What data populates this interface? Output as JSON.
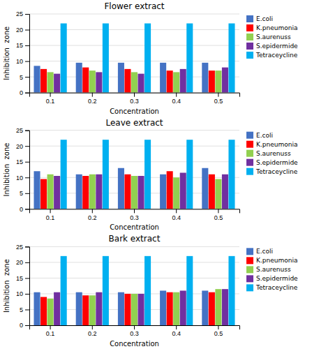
{
  "chart_data": [
    {
      "type": "bar",
      "title": "Flower extract",
      "xlabel": "Concentration",
      "ylabel": "Inhibition  zone",
      "categories": [
        "0.1",
        "0.2",
        "0.3",
        "0.4",
        "0.5"
      ],
      "series": [
        {
          "name": "E.coli",
          "color": "#4472C4",
          "values": [
            8.5,
            9.5,
            9.5,
            9.5,
            9.5
          ]
        },
        {
          "name": "K.pneumonia",
          "color": "#FF0000",
          "values": [
            7.5,
            8.0,
            7.5,
            7.0,
            7.0
          ]
        },
        {
          "name": "S.aurenuss",
          "color": "#92D050",
          "values": [
            6.5,
            7.0,
            6.5,
            6.5,
            7.0
          ]
        },
        {
          "name": "S.epidermide",
          "color": "#7030A0",
          "values": [
            6.0,
            6.5,
            6.0,
            7.5,
            8.0
          ]
        },
        {
          "name": "Tetraceycline",
          "color": "#00B0F0",
          "values": [
            22,
            22,
            22,
            22,
            22
          ]
        }
      ],
      "ylim": [
        0,
        25
      ],
      "yticks": [
        0,
        5,
        10,
        15,
        20,
        25
      ],
      "grid": true,
      "legend": "upper right"
    },
    {
      "type": "bar",
      "title": "Leave extract",
      "xlabel": "Concentration",
      "ylabel": "Inhibition  zone",
      "categories": [
        "0.1",
        "0.2",
        "0.3",
        "0.4",
        "0.5"
      ],
      "series": [
        {
          "name": "E.coli",
          "color": "#4472C4",
          "values": [
            12.0,
            11.0,
            13.0,
            11.0,
            13.0
          ]
        },
        {
          "name": "K.pneumonia",
          "color": "#FF0000",
          "values": [
            9.5,
            10.5,
            11.0,
            12.0,
            11.0
          ]
        },
        {
          "name": "S.aurenuss",
          "color": "#92D050",
          "values": [
            11.0,
            11.0,
            10.5,
            10.0,
            9.5
          ]
        },
        {
          "name": "S.epidermide",
          "color": "#7030A0",
          "values": [
            10.5,
            11.0,
            10.5,
            11.5,
            11.0
          ]
        },
        {
          "name": "Tetraceycline",
          "color": "#00B0F0",
          "values": [
            22,
            22,
            22,
            22,
            22
          ]
        }
      ],
      "ylim": [
        0,
        25
      ],
      "yticks": [
        0,
        5,
        10,
        15,
        20,
        25
      ],
      "grid": true,
      "legend": "upper right"
    },
    {
      "type": "bar",
      "title": "Bark extract",
      "xlabel": "Concentration",
      "ylabel": "Inhibition  zone",
      "categories": [
        "0.1",
        "0.2",
        "0.3",
        "0.4",
        "0.5"
      ],
      "series": [
        {
          "name": "E.coli",
          "color": "#4472C4",
          "values": [
            10.5,
            10.5,
            10.5,
            11.0,
            11.0
          ]
        },
        {
          "name": "K.pneumonia",
          "color": "#FF0000",
          "values": [
            9.0,
            9.5,
            10.0,
            10.5,
            10.5
          ]
        },
        {
          "name": "S.aurenuss",
          "color": "#92D050",
          "values": [
            8.5,
            9.5,
            10.0,
            10.5,
            11.5
          ]
        },
        {
          "name": "S.epidermide",
          "color": "#7030A0",
          "values": [
            10.5,
            10.5,
            10.0,
            11.0,
            11.5
          ]
        },
        {
          "name": "Tetraceycline",
          "color": "#00B0F0",
          "values": [
            22,
            22,
            22,
            22,
            22
          ]
        }
      ],
      "ylim": [
        0,
        25
      ],
      "yticks": [
        0,
        5,
        10,
        15,
        20,
        25
      ],
      "grid": true,
      "legend": "upper right"
    }
  ]
}
